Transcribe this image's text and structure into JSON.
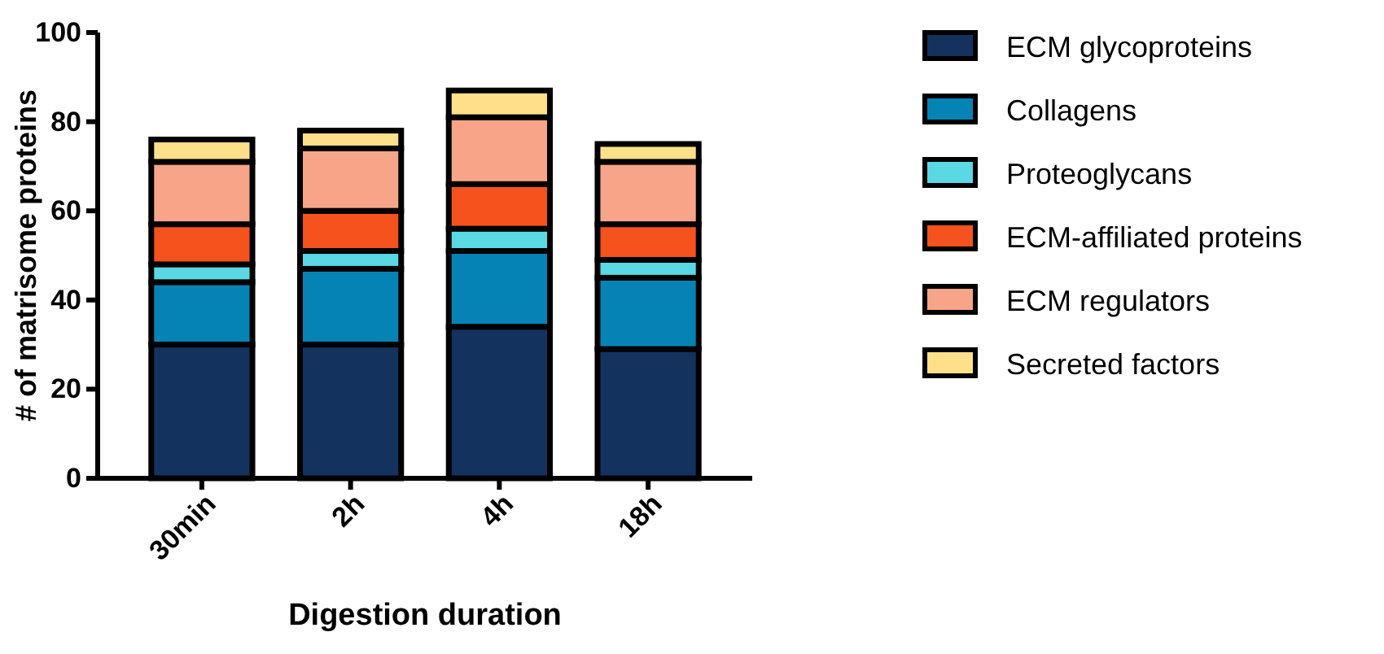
{
  "chart_data": {
    "type": "bar",
    "stacked": true,
    "xlabel": "Digestion duration",
    "ylabel": "# of matrisome proteins",
    "categories": [
      "30min",
      "2h",
      "4h",
      "18h"
    ],
    "ylim": [
      0,
      100
    ],
    "yticks": [
      0,
      20,
      40,
      60,
      80,
      100
    ],
    "legend": "right",
    "grid": false,
    "series": [
      {
        "name": "ECM glycoproteins",
        "color": "#14325e",
        "values": [
          30,
          30,
          34,
          29
        ]
      },
      {
        "name": "Collagens",
        "color": "#0683b5",
        "values": [
          14,
          17,
          17,
          16
        ]
      },
      {
        "name": "Proteoglycans",
        "color": "#5ad8e3",
        "values": [
          4,
          4,
          5,
          4
        ]
      },
      {
        "name": "ECM-affiliated proteins",
        "color": "#f5521e",
        "values": [
          9,
          9,
          10,
          8
        ]
      },
      {
        "name": "ECM regulators",
        "color": "#f8a488",
        "values": [
          14,
          14,
          15,
          14
        ]
      },
      {
        "name": "Secreted factors",
        "color": "#fee08a",
        "values": [
          5,
          4,
          6,
          4
        ]
      }
    ]
  }
}
